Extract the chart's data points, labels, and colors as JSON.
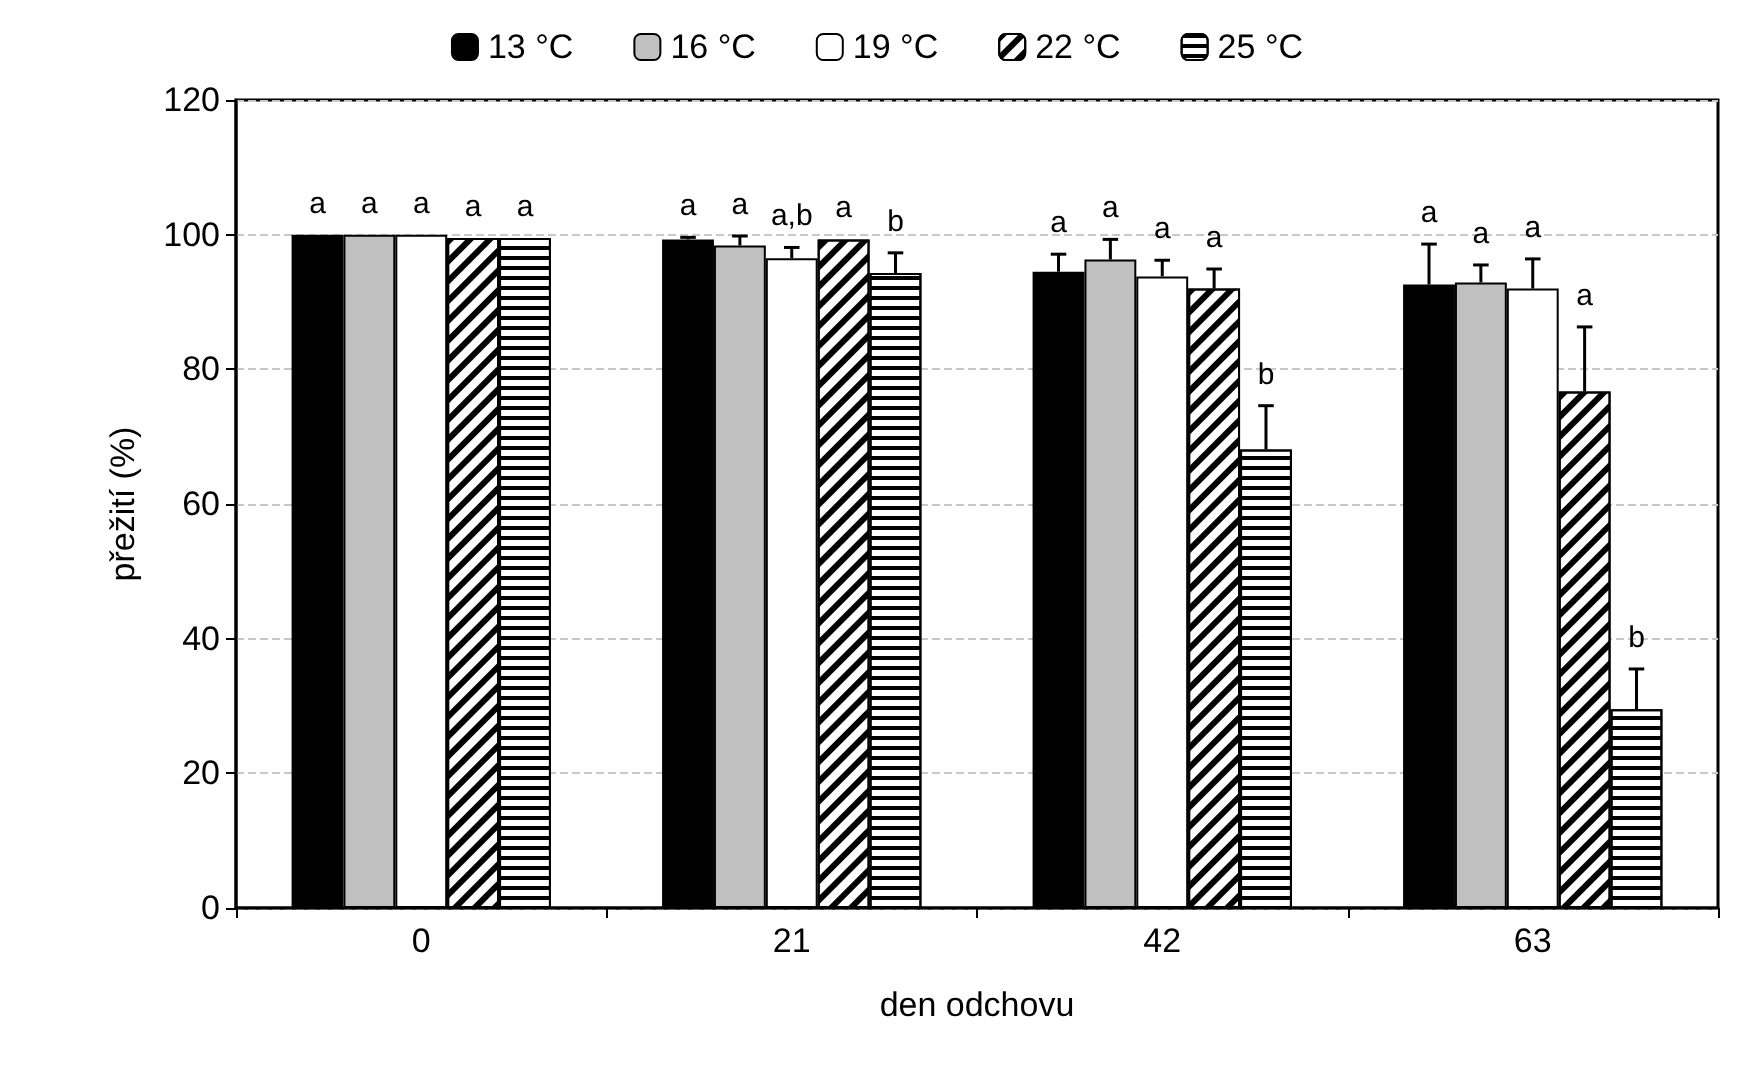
{
  "chart_data": {
    "type": "bar",
    "xlabel": "den odchovu",
    "ylabel": "přežití (%)",
    "categories": [
      "0",
      "21",
      "42",
      "63"
    ],
    "series": [
      {
        "name": "13 °C",
        "color": "#000000",
        "values": [
          100,
          99.3,
          94.5,
          92.6
        ],
        "errors": [
          null,
          0.3,
          2.6,
          6
        ]
      },
      {
        "name": "16 °C",
        "color": "#c0c0c0",
        "values": [
          100,
          98.4,
          96.3,
          92.9
        ],
        "errors": [
          null,
          1.4,
          3,
          2.6
        ]
      },
      {
        "name": "19 °C",
        "color": "#ffffff",
        "values": [
          100,
          96.5,
          93.8,
          92
        ],
        "errors": [
          null,
          1.6,
          2.4,
          4.4
        ]
      },
      {
        "name": "22 °C",
        "color": "#ffffff",
        "values": [
          99.5,
          99.3,
          92,
          76.7
        ],
        "errors": [
          null,
          null,
          2.9,
          9.6
        ]
      },
      {
        "name": "25 °C",
        "color": "#ffffff",
        "values": [
          99.5,
          94.3,
          68.1,
          29.5
        ],
        "errors": [
          null,
          3,
          6.5,
          6
        ]
      }
    ],
    "ylim": [
      0,
      120
    ],
    "yticks": [
      0,
      20,
      40,
      60,
      80,
      100,
      120
    ],
    "grid": "y",
    "legend": "top",
    "annotations": [
      "a",
      "a",
      "a",
      "a",
      "a",
      "a",
      "a",
      "a,b",
      "a",
      "b",
      "a",
      "a",
      "a",
      "a",
      "b",
      "a",
      "a",
      "a",
      "a",
      "b"
    ]
  }
}
